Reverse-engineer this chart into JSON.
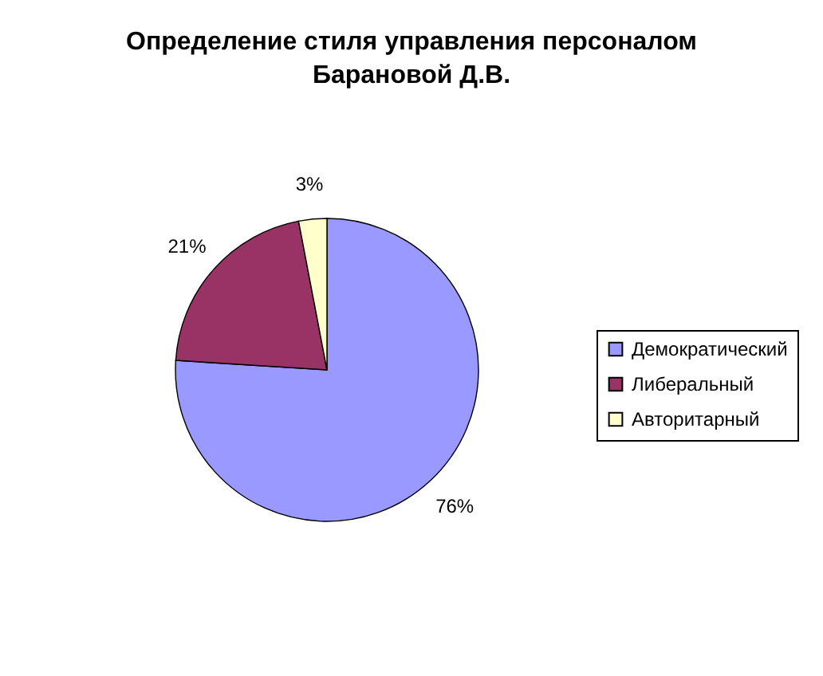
{
  "chart_data": {
    "type": "pie",
    "title": "Определение стиля управления персоналом\nБарановой Д.В.",
    "categories": [
      "Демократический",
      "Либеральный",
      "Авторитарный"
    ],
    "values": [
      76,
      21,
      3
    ],
    "colors": [
      "#9999ff",
      "#993366",
      "#ffffcc"
    ],
    "value_labels": [
      "76%",
      "21%",
      "3%"
    ],
    "legend": "right"
  }
}
